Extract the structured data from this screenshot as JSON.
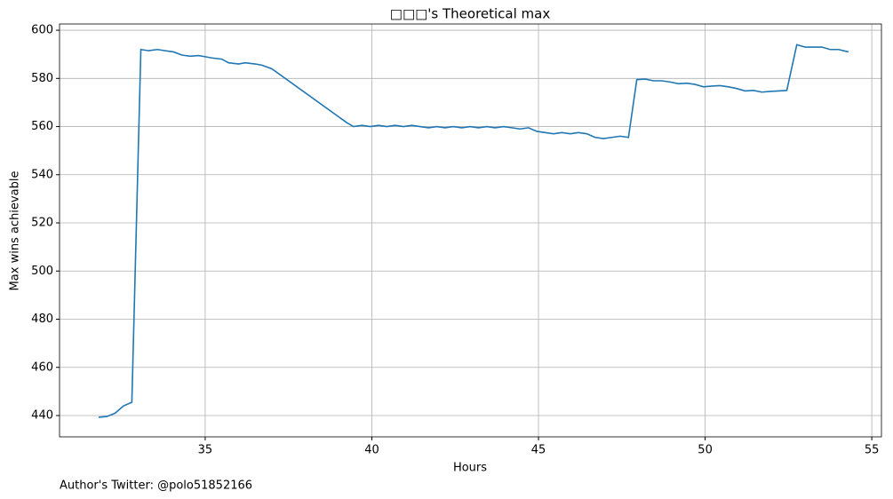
{
  "chart_data": {
    "type": "line",
    "title": "□□□'s Theoretical max",
    "x_label": "Hours",
    "y_label": "Max wins achievable",
    "footnote": "Author's Twitter: @polo51852166",
    "x": [
      31.8,
      32.05,
      32.3,
      32.55,
      32.8,
      33.07,
      33.3,
      33.57,
      33.8,
      34.05,
      34.3,
      34.55,
      34.8,
      35.0,
      35.2,
      35.5,
      35.7,
      36.0,
      36.2,
      36.5,
      36.7,
      37.0,
      39.25,
      39.45,
      39.7,
      39.95,
      40.2,
      40.45,
      40.7,
      40.95,
      41.2,
      41.45,
      41.7,
      41.95,
      42.2,
      42.45,
      42.7,
      42.95,
      43.2,
      43.45,
      43.7,
      43.95,
      44.2,
      44.45,
      44.7,
      44.95,
      45.2,
      45.45,
      45.7,
      45.95,
      46.2,
      46.45,
      46.7,
      46.95,
      47.2,
      47.45,
      47.7,
      47.95,
      48.2,
      48.45,
      48.7,
      48.95,
      49.2,
      49.45,
      49.7,
      49.95,
      50.2,
      50.45,
      50.7,
      50.95,
      51.2,
      51.45,
      51.7,
      51.95,
      52.2,
      52.45,
      52.75,
      53.0,
      53.25,
      53.5,
      53.75,
      54.0,
      54.3
    ],
    "series": [
      {
        "name": "Theoretical max",
        "color": "#1f77b4",
        "values": [
          439.3,
          439.6,
          441,
          444,
          445.5,
          592,
          591.5,
          592,
          591.5,
          591,
          589.7,
          589.2,
          589.5,
          589,
          588.5,
          588,
          586.5,
          586,
          586.5,
          586,
          585.5,
          584,
          561.6,
          560,
          560.5,
          560,
          560.5,
          560,
          560.5,
          560,
          560.5,
          560,
          559.5,
          560,
          559.5,
          560,
          559.5,
          560,
          559.5,
          560,
          559.5,
          560,
          559.5,
          559,
          559.5,
          558,
          557.5,
          557,
          557.5,
          557,
          557.5,
          557,
          555.5,
          555,
          555.5,
          556,
          555.5,
          579.5,
          579.7,
          579,
          579,
          578.5,
          577.8,
          578,
          577.5,
          576.5,
          576.8,
          577,
          576.5,
          575.8,
          574.8,
          575,
          574.3,
          574.6,
          574.8,
          575,
          594,
          593,
          593,
          593,
          592,
          592,
          591
        ]
      }
    ],
    "xlim": [
      30.63,
      55.29
    ],
    "xticks": [
      35,
      40,
      45,
      50,
      55
    ],
    "ylim": [
      431.15,
      602.6
    ],
    "yticks": [
      440,
      460,
      480,
      500,
      520,
      540,
      560,
      580,
      600
    ],
    "grid": true
  }
}
